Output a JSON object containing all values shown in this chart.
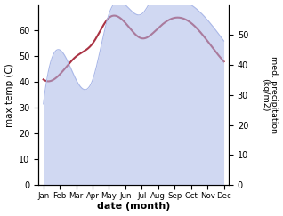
{
  "months": [
    "Jan",
    "Feb",
    "Mar",
    "Apr",
    "May",
    "Jun",
    "Jul",
    "Aug",
    "Sep",
    "Oct",
    "Nov",
    "Dec"
  ],
  "temp_max": [
    41,
    43,
    50,
    55,
    65,
    63,
    57,
    61,
    65,
    63,
    56,
    48
  ],
  "precipitation": [
    27,
    45,
    35,
    35,
    57,
    60,
    57,
    65,
    63,
    60,
    55,
    48
  ],
  "temp_color": "#aa3344",
  "precip_fill_color": "#aab8e8",
  "ylabel_left": "max temp (C)",
  "ylabel_right": "med. precipitation\n(kg/m2)",
  "xlabel": "date (month)",
  "ylim_left": [
    0,
    70
  ],
  "ylim_right": [
    0,
    60
  ],
  "yticks_left": [
    0,
    10,
    20,
    30,
    40,
    50,
    60
  ],
  "yticks_right": [
    0,
    10,
    20,
    30,
    40,
    50
  ],
  "bg_color": "#ffffff"
}
